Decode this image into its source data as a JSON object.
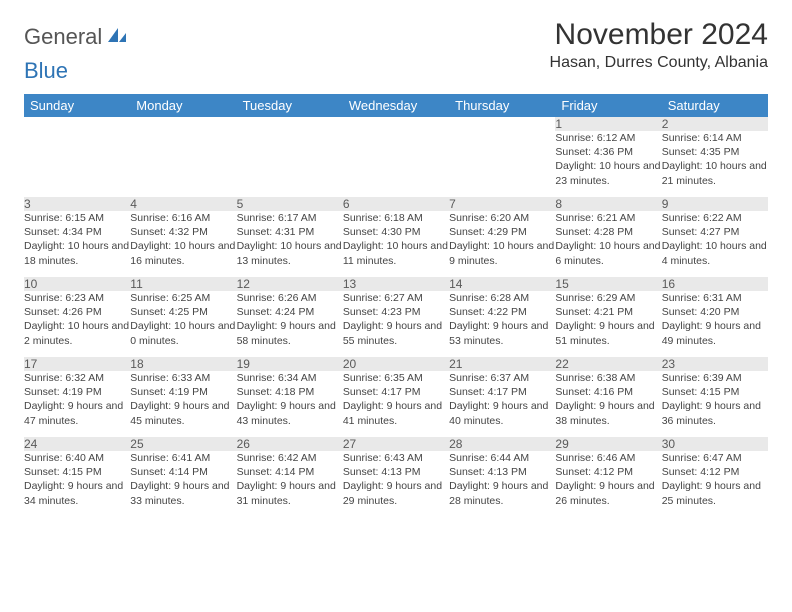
{
  "logo": {
    "word1": "General",
    "word2": "Blue"
  },
  "title": "November 2024",
  "location": "Hasan, Durres County, Albania",
  "colors": {
    "header_bg": "#3d86c6",
    "header_text": "#ffffff",
    "daynum_bg": "#e9e9e9",
    "cell_text": "#454545",
    "rule": "#3d86c6",
    "logo_blue": "#2e74b5"
  },
  "day_headers": [
    "Sunday",
    "Monday",
    "Tuesday",
    "Wednesday",
    "Thursday",
    "Friday",
    "Saturday"
  ],
  "weeks": [
    [
      null,
      null,
      null,
      null,
      null,
      {
        "n": "1",
        "sr": "Sunrise: 6:12 AM",
        "ss": "Sunset: 4:36 PM",
        "dl": "Daylight: 10 hours and 23 minutes."
      },
      {
        "n": "2",
        "sr": "Sunrise: 6:14 AM",
        "ss": "Sunset: 4:35 PM",
        "dl": "Daylight: 10 hours and 21 minutes."
      }
    ],
    [
      {
        "n": "3",
        "sr": "Sunrise: 6:15 AM",
        "ss": "Sunset: 4:34 PM",
        "dl": "Daylight: 10 hours and 18 minutes."
      },
      {
        "n": "4",
        "sr": "Sunrise: 6:16 AM",
        "ss": "Sunset: 4:32 PM",
        "dl": "Daylight: 10 hours and 16 minutes."
      },
      {
        "n": "5",
        "sr": "Sunrise: 6:17 AM",
        "ss": "Sunset: 4:31 PM",
        "dl": "Daylight: 10 hours and 13 minutes."
      },
      {
        "n": "6",
        "sr": "Sunrise: 6:18 AM",
        "ss": "Sunset: 4:30 PM",
        "dl": "Daylight: 10 hours and 11 minutes."
      },
      {
        "n": "7",
        "sr": "Sunrise: 6:20 AM",
        "ss": "Sunset: 4:29 PM",
        "dl": "Daylight: 10 hours and 9 minutes."
      },
      {
        "n": "8",
        "sr": "Sunrise: 6:21 AM",
        "ss": "Sunset: 4:28 PM",
        "dl": "Daylight: 10 hours and 6 minutes."
      },
      {
        "n": "9",
        "sr": "Sunrise: 6:22 AM",
        "ss": "Sunset: 4:27 PM",
        "dl": "Daylight: 10 hours and 4 minutes."
      }
    ],
    [
      {
        "n": "10",
        "sr": "Sunrise: 6:23 AM",
        "ss": "Sunset: 4:26 PM",
        "dl": "Daylight: 10 hours and 2 minutes."
      },
      {
        "n": "11",
        "sr": "Sunrise: 6:25 AM",
        "ss": "Sunset: 4:25 PM",
        "dl": "Daylight: 10 hours and 0 minutes."
      },
      {
        "n": "12",
        "sr": "Sunrise: 6:26 AM",
        "ss": "Sunset: 4:24 PM",
        "dl": "Daylight: 9 hours and 58 minutes."
      },
      {
        "n": "13",
        "sr": "Sunrise: 6:27 AM",
        "ss": "Sunset: 4:23 PM",
        "dl": "Daylight: 9 hours and 55 minutes."
      },
      {
        "n": "14",
        "sr": "Sunrise: 6:28 AM",
        "ss": "Sunset: 4:22 PM",
        "dl": "Daylight: 9 hours and 53 minutes."
      },
      {
        "n": "15",
        "sr": "Sunrise: 6:29 AM",
        "ss": "Sunset: 4:21 PM",
        "dl": "Daylight: 9 hours and 51 minutes."
      },
      {
        "n": "16",
        "sr": "Sunrise: 6:31 AM",
        "ss": "Sunset: 4:20 PM",
        "dl": "Daylight: 9 hours and 49 minutes."
      }
    ],
    [
      {
        "n": "17",
        "sr": "Sunrise: 6:32 AM",
        "ss": "Sunset: 4:19 PM",
        "dl": "Daylight: 9 hours and 47 minutes."
      },
      {
        "n": "18",
        "sr": "Sunrise: 6:33 AM",
        "ss": "Sunset: 4:19 PM",
        "dl": "Daylight: 9 hours and 45 minutes."
      },
      {
        "n": "19",
        "sr": "Sunrise: 6:34 AM",
        "ss": "Sunset: 4:18 PM",
        "dl": "Daylight: 9 hours and 43 minutes."
      },
      {
        "n": "20",
        "sr": "Sunrise: 6:35 AM",
        "ss": "Sunset: 4:17 PM",
        "dl": "Daylight: 9 hours and 41 minutes."
      },
      {
        "n": "21",
        "sr": "Sunrise: 6:37 AM",
        "ss": "Sunset: 4:17 PM",
        "dl": "Daylight: 9 hours and 40 minutes."
      },
      {
        "n": "22",
        "sr": "Sunrise: 6:38 AM",
        "ss": "Sunset: 4:16 PM",
        "dl": "Daylight: 9 hours and 38 minutes."
      },
      {
        "n": "23",
        "sr": "Sunrise: 6:39 AM",
        "ss": "Sunset: 4:15 PM",
        "dl": "Daylight: 9 hours and 36 minutes."
      }
    ],
    [
      {
        "n": "24",
        "sr": "Sunrise: 6:40 AM",
        "ss": "Sunset: 4:15 PM",
        "dl": "Daylight: 9 hours and 34 minutes."
      },
      {
        "n": "25",
        "sr": "Sunrise: 6:41 AM",
        "ss": "Sunset: 4:14 PM",
        "dl": "Daylight: 9 hours and 33 minutes."
      },
      {
        "n": "26",
        "sr": "Sunrise: 6:42 AM",
        "ss": "Sunset: 4:14 PM",
        "dl": "Daylight: 9 hours and 31 minutes."
      },
      {
        "n": "27",
        "sr": "Sunrise: 6:43 AM",
        "ss": "Sunset: 4:13 PM",
        "dl": "Daylight: 9 hours and 29 minutes."
      },
      {
        "n": "28",
        "sr": "Sunrise: 6:44 AM",
        "ss": "Sunset: 4:13 PM",
        "dl": "Daylight: 9 hours and 28 minutes."
      },
      {
        "n": "29",
        "sr": "Sunrise: 6:46 AM",
        "ss": "Sunset: 4:12 PM",
        "dl": "Daylight: 9 hours and 26 minutes."
      },
      {
        "n": "30",
        "sr": "Sunrise: 6:47 AM",
        "ss": "Sunset: 4:12 PM",
        "dl": "Daylight: 9 hours and 25 minutes."
      }
    ]
  ]
}
